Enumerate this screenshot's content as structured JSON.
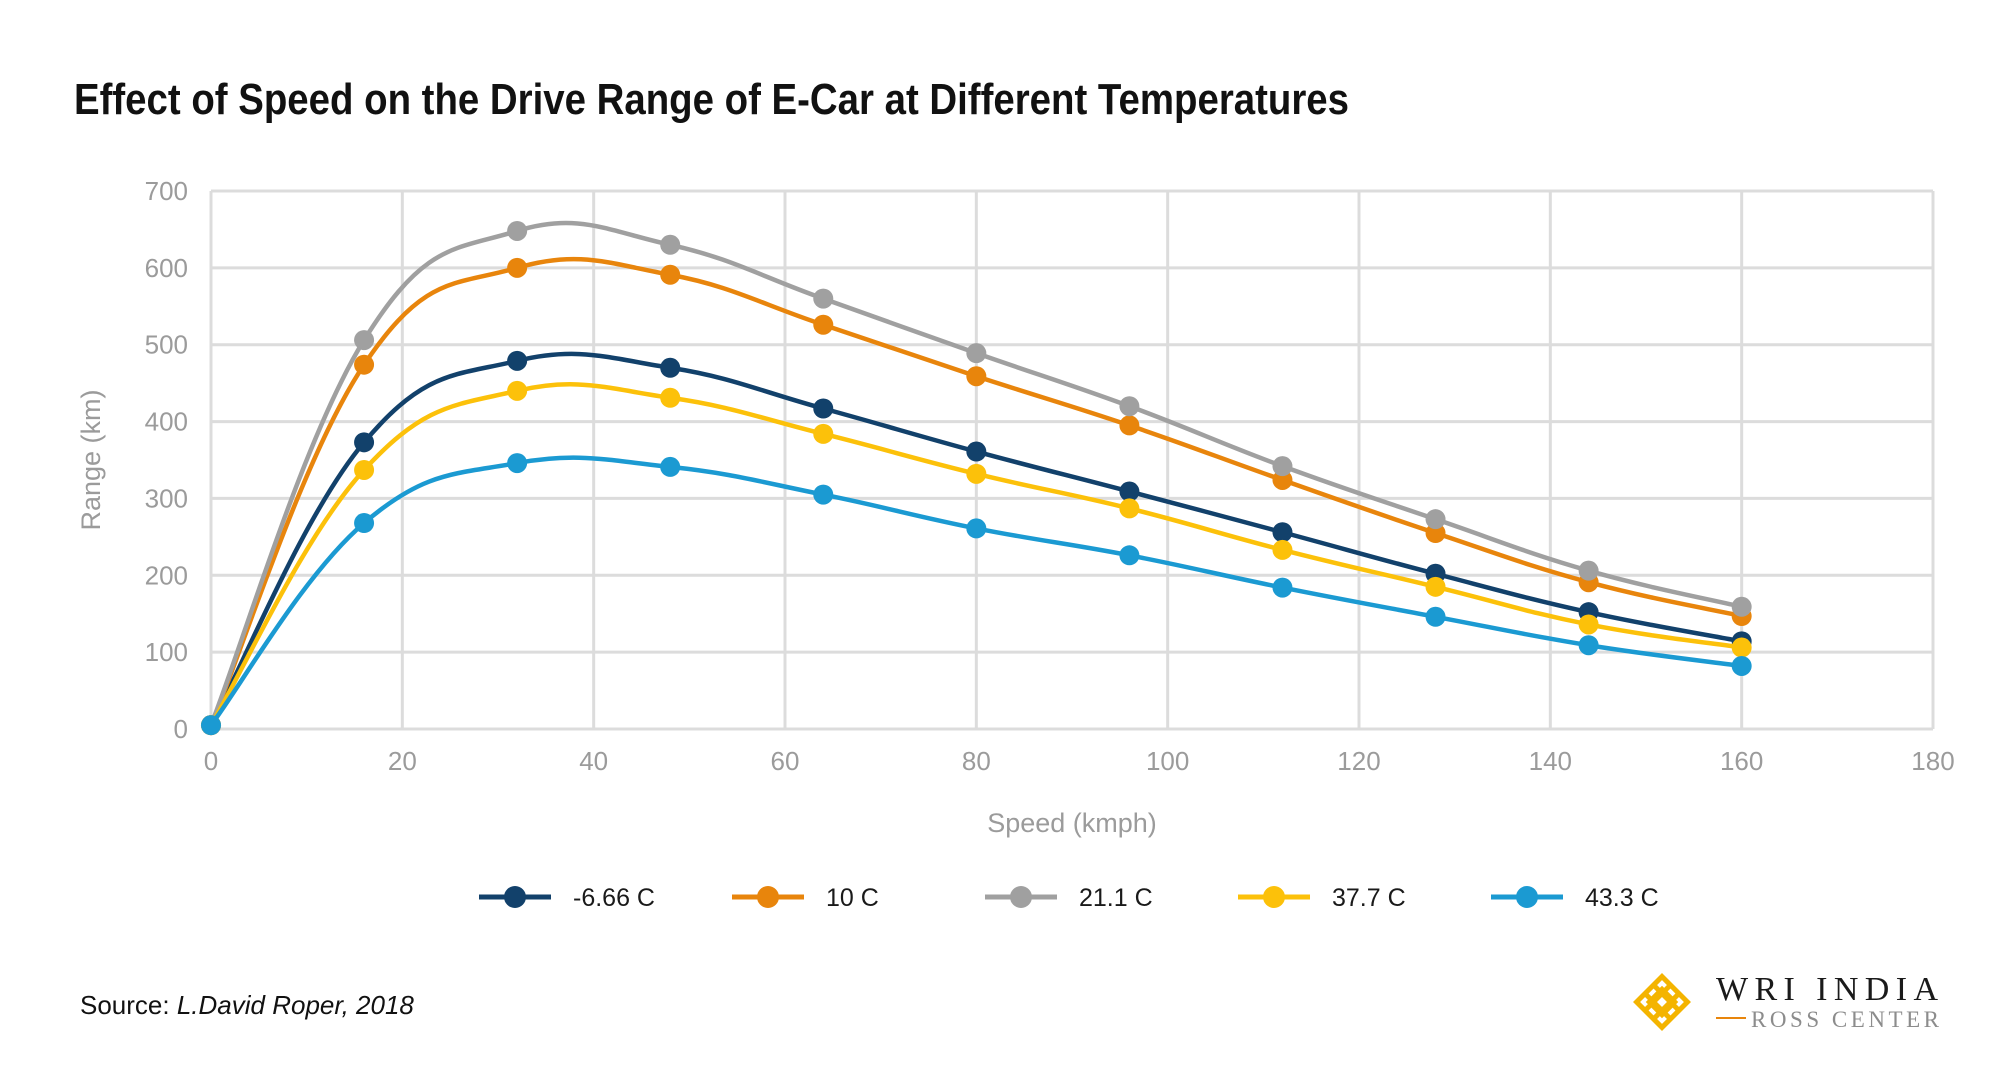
{
  "title": "Effect of Speed on the Drive Range of E-Car at Different Temperatures",
  "source_label": "Source:",
  "source_text": "L.David Roper, 2018",
  "logo": {
    "line1": "WRI INDIA",
    "line2": "ROSS CENTER",
    "colors": {
      "mark": "#f4b400",
      "text": "#1a1a1a",
      "subtext": "#8c8c8c",
      "rule": "#e8850c"
    }
  },
  "chart_data": {
    "type": "line",
    "title": "Effect of Speed on the Drive Range of E-Car at Different Temperatures",
    "xlabel": "Speed (kmph)",
    "ylabel": "Range (km)",
    "xlim": [
      0,
      180
    ],
    "ylim": [
      0,
      700
    ],
    "xticks": [
      0,
      20,
      40,
      60,
      80,
      100,
      120,
      140,
      160,
      180
    ],
    "yticks": [
      0,
      100,
      200,
      300,
      400,
      500,
      600,
      700
    ],
    "grid": true,
    "smooth": true,
    "legend_position": "bottom",
    "x": [
      0,
      16,
      32,
      48,
      64,
      80,
      96,
      112,
      128,
      144,
      160
    ],
    "series": [
      {
        "name": "-6.66 C",
        "color": "#12416b",
        "values": [
          5,
          373,
          479,
          470,
          417,
          361,
          309,
          256,
          202,
          152,
          114
        ]
      },
      {
        "name": "10 C",
        "color": "#e8850c",
        "values": [
          5,
          474,
          600,
          591,
          526,
          459,
          395,
          324,
          255,
          191,
          147
        ]
      },
      {
        "name": "21.1 C",
        "color": "#a0a0a0",
        "values": [
          5,
          506,
          648,
          630,
          560,
          489,
          420,
          342,
          273,
          206,
          159
        ]
      },
      {
        "name": "37.7 C",
        "color": "#fcc10a",
        "values": [
          5,
          337,
          440,
          431,
          384,
          332,
          287,
          233,
          185,
          136,
          106
        ]
      },
      {
        "name": "43.3 C",
        "color": "#1b9ad2",
        "values": [
          5,
          268,
          346,
          341,
          305,
          261,
          226,
          184,
          146,
          109,
          82
        ]
      }
    ]
  }
}
